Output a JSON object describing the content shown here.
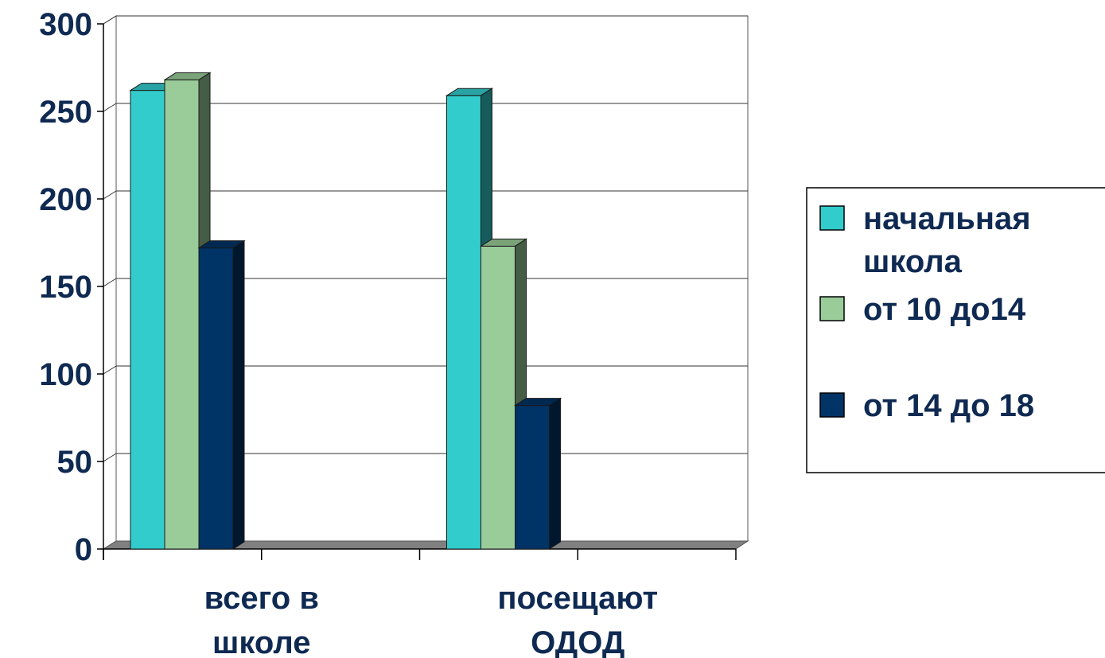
{
  "chart_data": {
    "type": "bar",
    "three_d": true,
    "categories": [
      [
        "всего в",
        "школе"
      ],
      [
        "посещают",
        "ОДОД"
      ]
    ],
    "series": [
      {
        "name": [
          "начальная",
          "школа"
        ],
        "values": [
          262,
          259
        ],
        "color": "#33cccc"
      },
      {
        "name": [
          "от 10 до14"
        ],
        "values": [
          268,
          173
        ],
        "color": "#99cc99"
      },
      {
        "name": [
          "от 14 до 18"
        ],
        "values": [
          172,
          82
        ],
        "color": "#003366"
      }
    ],
    "ylim": [
      0,
      300
    ],
    "yticks": [
      0,
      50,
      100,
      150,
      200,
      250,
      300
    ],
    "grid": true,
    "legend": "right",
    "colors": {
      "text": "#0f2a52",
      "grid": "#333333",
      "floor": "#808080"
    }
  }
}
